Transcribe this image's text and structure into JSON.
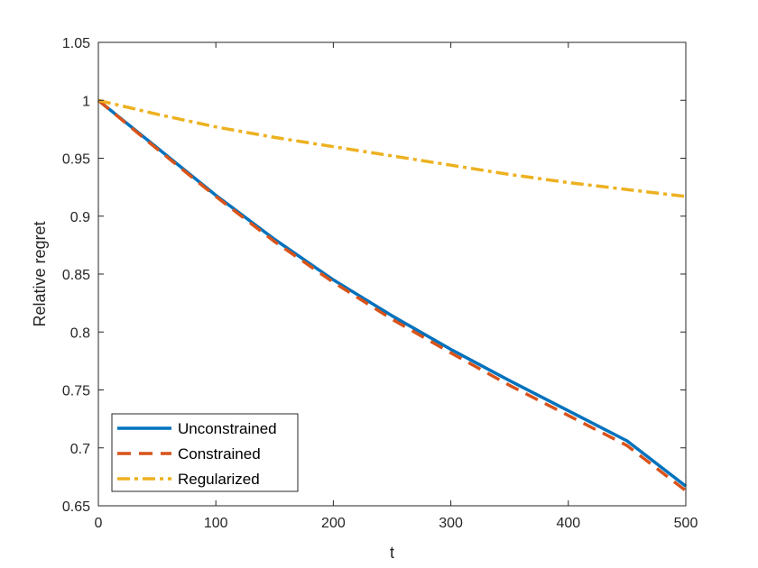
{
  "chart_data": {
    "type": "line",
    "title": "",
    "xlabel": "t",
    "ylabel": "Relative regret",
    "xlim": [
      0,
      500
    ],
    "ylim": [
      0.65,
      1.05
    ],
    "xticks": [
      0,
      100,
      200,
      300,
      400,
      500
    ],
    "xtick_labels": [
      "0",
      "100",
      "200",
      "300",
      "400",
      "500"
    ],
    "yticks": [
      0.65,
      0.7,
      0.75,
      0.8,
      0.85,
      0.9,
      0.95,
      1,
      1.05
    ],
    "ytick_labels": [
      "0.65",
      "0.7",
      "0.75",
      "0.8",
      "0.85",
      "0.9",
      "0.95",
      "1",
      "1.05"
    ],
    "grid": false,
    "legend_position": "bottom-left",
    "series": [
      {
        "name": "Unconstrained",
        "color": "#0072BD",
        "line_style": "solid",
        "x": [
          0,
          50,
          100,
          150,
          200,
          250,
          300,
          350,
          400,
          450,
          500
        ],
        "y": [
          1.0,
          0.959,
          0.918,
          0.88,
          0.845,
          0.814,
          0.785,
          0.758,
          0.732,
          0.706,
          0.667
        ]
      },
      {
        "name": "Constrained",
        "color": "#D95319",
        "line_style": "dashed",
        "x": [
          0,
          50,
          100,
          150,
          200,
          250,
          300,
          350,
          400,
          450,
          500
        ],
        "y": [
          1.0,
          0.958,
          0.917,
          0.878,
          0.843,
          0.811,
          0.782,
          0.754,
          0.728,
          0.702,
          0.663
        ]
      },
      {
        "name": "Regularized",
        "color": "#EDB120",
        "line_style": "dash-dot",
        "x": [
          0,
          50,
          100,
          150,
          200,
          250,
          300,
          350,
          400,
          450,
          500
        ],
        "y": [
          1.0,
          0.988,
          0.977,
          0.968,
          0.96,
          0.952,
          0.944,
          0.936,
          0.929,
          0.923,
          0.917
        ]
      }
    ]
  }
}
